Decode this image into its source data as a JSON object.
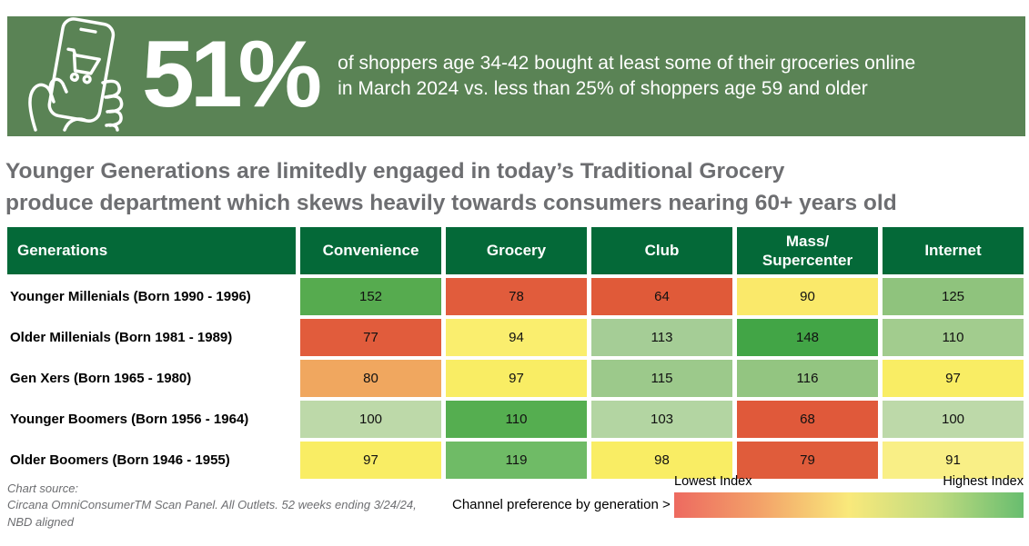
{
  "banner": {
    "bg_color": "#5a8355",
    "icon": "hand-holding-phone-with-shopping-cart",
    "stat": "51%",
    "description_line1": "of shoppers age 34-42 bought at least some of their groceries online",
    "description_line2": "in March 2024 vs. less than 25% of shoppers age 59 and older"
  },
  "headline": {
    "line1": "Younger Generations are limitedly engaged in today’s Traditional Grocery",
    "line2": "produce department which skews heavily towards consumers nearing 60+ years old"
  },
  "chart_data": {
    "type": "heatmap",
    "header_bg": "#046938",
    "columns": [
      "Generations",
      "Convenience",
      "Grocery",
      "Club",
      "Mass/\nSupercenter",
      "Internet"
    ],
    "rows": [
      {
        "label": "Younger Millenials (Born 1990 - 1996)",
        "values": [
          152,
          78,
          64,
          90,
          125
        ],
        "colors": [
          "#56ab4f",
          "#e15c3c",
          "#e05a39",
          "#fae96a",
          "#8fc37d"
        ]
      },
      {
        "label": "Older Millenials (Born 1981 - 1989)",
        "values": [
          77,
          94,
          113,
          148,
          110
        ],
        "colors": [
          "#e15c3c",
          "#faee6e",
          "#a5cd96",
          "#42a546",
          "#a2cc8e"
        ]
      },
      {
        "label": "Gen Xers (Born 1965 - 1980)",
        "values": [
          80,
          97,
          115,
          116,
          97
        ],
        "colors": [
          "#f0a75f",
          "#f9ed64",
          "#9cc98b",
          "#93c581",
          "#f9ed64"
        ]
      },
      {
        "label": "Younger Boomers (Born 1956 - 1964)",
        "values": [
          100,
          110,
          103,
          68,
          100
        ],
        "colors": [
          "#bdd9a9",
          "#55ae50",
          "#b3d5a2",
          "#e0593a",
          "#bdd9a9"
        ]
      },
      {
        "label": "Older Boomers (Born 1946 - 1955)",
        "values": [
          97,
          119,
          98,
          79,
          91
        ],
        "colors": [
          "#f9ed64",
          "#6fbb66",
          "#f9ed64",
          "#e05c3b",
          "#f9ef86"
        ]
      }
    ],
    "legend": {
      "low_label": "Lowest Index",
      "high_label": "Highest Index",
      "gradient": [
        "#ed6a60",
        "#f3a369",
        "#f9e97b",
        "#c0db80",
        "#68bd6f"
      ]
    }
  },
  "footer": {
    "source_line1": "Chart source:",
    "source_line2": "Circana OmniConsumerTM Scan Panel. All Outlets. 52 weeks ending 3/24/24,",
    "source_line3": "NBD aligned",
    "channel_label": "Channel preference by generation >"
  }
}
